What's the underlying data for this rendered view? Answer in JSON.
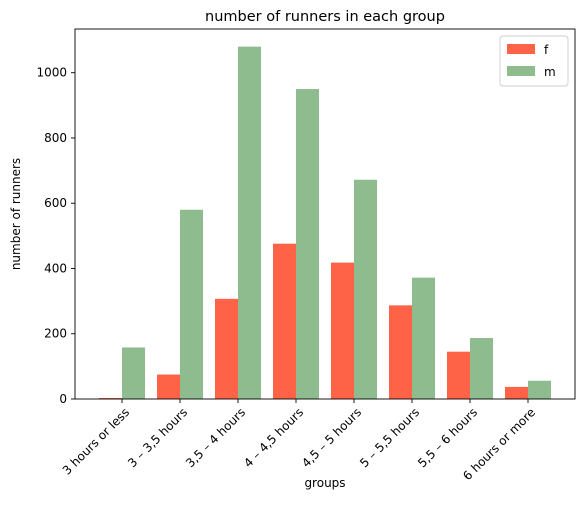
{
  "chart_data": {
    "type": "bar",
    "title": "number of runners in each group",
    "xlabel": "groups",
    "ylabel": "number of runners",
    "categories": [
      "3 hours or less",
      "3 – 3,5 hours",
      "3,5 – 4 hours",
      "4 – 4,5 hours",
      "4,5 – 5 hours",
      "5 – 5,5 hours",
      "5,5 – 6 hours",
      "6 hours or more"
    ],
    "series": [
      {
        "name": "f",
        "color": "#ff6347",
        "values": [
          3,
          75,
          307,
          476,
          418,
          287,
          145,
          37
        ]
      },
      {
        "name": "m",
        "color": "#8fbc8f",
        "values": [
          158,
          580,
          1080,
          950,
          672,
          372,
          187,
          56
        ]
      }
    ],
    "ylim": [
      0,
      1134
    ],
    "yticks": [
      0,
      200,
      400,
      600,
      800,
      1000
    ],
    "grid": false,
    "legend_position": "top-right"
  }
}
